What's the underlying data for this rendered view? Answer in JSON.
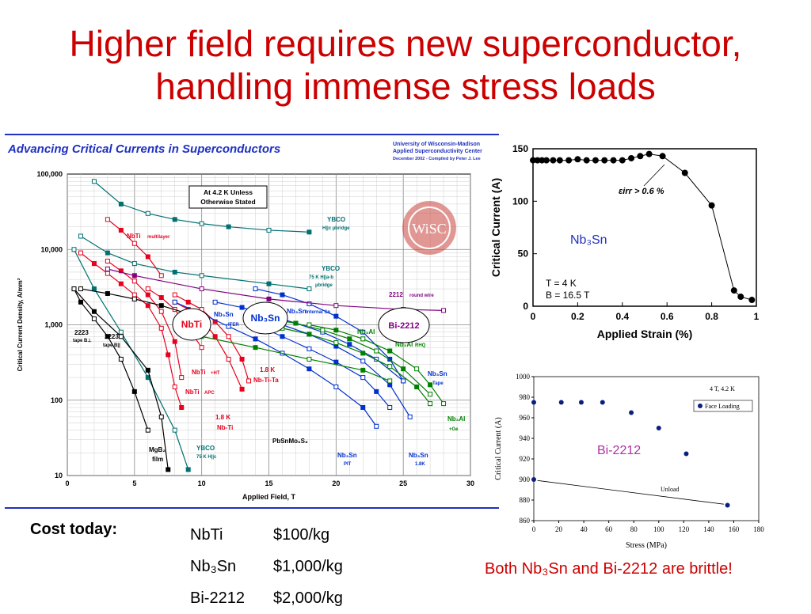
{
  "slide": {
    "title_line1": "Higher field requires new superconductor,",
    "title_line2": "handling immense stress loads"
  },
  "main_chart": {
    "header": "Advancing Critical Currents in Superconductors",
    "credit_lines": [
      "University of Wisconsin-Madison",
      "Applied Superconductivity Center",
      "December 2002 - Compiled by Peter J. Lee"
    ],
    "note_lines": [
      "At 4.2 K Unless",
      "Otherwise Stated"
    ],
    "logo_text": "WiSC",
    "xlabel": "Applied Field, T",
    "ylabel": "Critical Current Density, A/mm²",
    "x_ticks": [
      "0",
      "5",
      "10",
      "15",
      "20",
      "25",
      "30"
    ],
    "y_ticks": [
      "100,000",
      "10,000",
      "1,000",
      "100",
      "10"
    ],
    "labels": {
      "ybco_top": "YBCO",
      "ybco_top_sub": "H||c µbridge",
      "ybco_mid": "YBCO",
      "ybco_mid_sub1": "75 K H||a-b",
      "ybco_mid_sub2": "µbridge",
      "r2212": "2212",
      "r2212_sub": "round wire",
      "nbti_ml": "NbTi",
      "nbti_ml_sub": "multilayer",
      "t2223a": "2223",
      "t2223a_sub": "tape B⊥",
      "t2223b": "2223",
      "t2223b_sub": "tape B||",
      "nbti_ht": "NbTi",
      "nbti_ht_sub": "+HT",
      "nbti_apc": "NbTi",
      "nbti_apc_sub": "APC",
      "nbtita_1": "1.8 K",
      "nbtita_2": "Nb-Ti-Ta",
      "nbti18_1": "1.8 K",
      "nbti18_2": "Nb-Ti",
      "pbsnmo": "PbSnMo₆S₈",
      "mgb2_1": "MgB₂",
      "mgb2_2": "film",
      "ybco_low": "YBCO",
      "ybco_low_sub": "75 K H||c",
      "nb3sn_pit": "Nb₃Sn",
      "nb3sn_pit_sub": "PIT",
      "nb3sn_18": "Nb₃Sn",
      "nb3sn_18_sub": "1.8K",
      "nb3sn_tape": "Nb₃Sn",
      "nb3sn_tape_sub": "Tape",
      "nb3al_ge": "Nb₃Al",
      "nb3al_ge_sub": "+Ge",
      "nb3al_rhq": "Nb₃Al",
      "nb3al_rhq_sub": "RHQ",
      "nb3al_mid": "Nb₃Al",
      "nb3sn_int": "Nb₃Sn",
      "nb3sn_int_sub": "Internal Sn",
      "nb3sn_iter": "Nb₃Sn",
      "nb3sn_iter_sub": "ITER"
    },
    "callouts": {
      "nbti": "NbTi",
      "nb3sn": "Nb₃Sn",
      "bi2212": "Bi-2212"
    },
    "colors": {
      "nbti": "#e8001c",
      "nb3sn": "#0030d0",
      "nb3al": "#008000",
      "bi2212": "#800080",
      "ybco": "#007070",
      "other": "#000000"
    }
  },
  "chart_data": [
    {
      "type": "line",
      "title": "Advancing Critical Currents in Superconductors",
      "xlabel": "Applied Field, T",
      "ylabel": "Critical Current Density, A/mm²",
      "xlim": [
        0,
        30
      ],
      "ylim": [
        10,
        100000
      ],
      "yscale": "log",
      "grid": true,
      "series": [
        {
          "name": "NbTi",
          "color": "#e8001c",
          "x": [
            1,
            2,
            3,
            4,
            5,
            6,
            7,
            7.5,
            8,
            8.5
          ],
          "y": [
            9000,
            6500,
            4800,
            3500,
            2500,
            1800,
            900,
            400,
            150,
            80
          ]
        },
        {
          "name": "NbTi +HT",
          "color": "#e8001c",
          "x": [
            6,
            7,
            8,
            9,
            10
          ],
          "y": [
            3000,
            2300,
            1600,
            900,
            500
          ]
        },
        {
          "name": "NbTi APC",
          "color": "#e8001c",
          "x": [
            3,
            4,
            5,
            6,
            7,
            8,
            8.5
          ],
          "y": [
            7000,
            5200,
            3800,
            2500,
            1500,
            600,
            200
          ]
        },
        {
          "name": "1.8 K Nb-Ti-Ta",
          "color": "#e8001c",
          "x": [
            8,
            9,
            10,
            11,
            12,
            13,
            13.5
          ],
          "y": [
            2500,
            2000,
            1600,
            1100,
            700,
            350,
            180
          ]
        },
        {
          "name": "1.8 K Nb-Ti",
          "color": "#e8001c",
          "x": [
            8,
            9,
            10,
            11,
            12,
            13
          ],
          "y": [
            2000,
            1600,
            1200,
            700,
            350,
            140
          ]
        },
        {
          "name": "NbTi multilayer",
          "color": "#e8001c",
          "x": [
            3,
            4,
            5,
            6,
            7
          ],
          "y": [
            25000,
            18000,
            12000,
            8000,
            4500
          ]
        },
        {
          "name": "Nb3Sn Internal Sn",
          "color": "#0030d0",
          "x": [
            11,
            13,
            15,
            17,
            19,
            21,
            23,
            25
          ],
          "y": [
            2000,
            1700,
            1350,
            1050,
            800,
            550,
            350,
            180
          ]
        },
        {
          "name": "Nb3Sn ITER",
          "color": "#0030d0",
          "x": [
            8,
            10,
            12,
            14,
            16,
            18,
            20,
            22,
            23
          ],
          "y": [
            2000,
            1400,
            950,
            650,
            420,
            260,
            150,
            80,
            45
          ]
        },
        {
          "name": "Nb3Sn PIT",
          "color": "#0030d0",
          "x": [
            14,
            16,
            18,
            20,
            22,
            23,
            24
          ],
          "y": [
            1000,
            700,
            480,
            320,
            200,
            130,
            80
          ]
        },
        {
          "name": "Nb3Sn 1.8K",
          "color": "#0030d0",
          "x": [
            14,
            16,
            18,
            20,
            22,
            24,
            25.5
          ],
          "y": [
            1300,
            1000,
            750,
            520,
            330,
            160,
            60
          ]
        },
        {
          "name": "Nb3Sn Tape",
          "color": "#0030d0",
          "x": [
            14,
            16,
            18,
            20,
            22,
            24,
            25
          ],
          "y": [
            3000,
            2500,
            1900,
            1300,
            800,
            350,
            180
          ]
        },
        {
          "name": "Nb3Al RHQ",
          "color": "#008000",
          "x": [
            15,
            17,
            19,
            21,
            23,
            25,
            27
          ],
          "y": [
            1200,
            1050,
            850,
            650,
            450,
            260,
            120
          ]
        },
        {
          "name": "Nb3Al",
          "color": "#008000",
          "x": [
            16,
            18,
            20,
            22,
            24,
            26,
            27
          ],
          "y": [
            900,
            750,
            580,
            420,
            280,
            150,
            90
          ]
        },
        {
          "name": "Nb3Al +Ge",
          "color": "#008000",
          "x": [
            18,
            20,
            22,
            24,
            26,
            27,
            28
          ],
          "y": [
            1000,
            850,
            650,
            450,
            260,
            160,
            90
          ]
        },
        {
          "name": "2212 round wire",
          "color": "#800080",
          "x": [
            3,
            5,
            10,
            15,
            20,
            25,
            28
          ],
          "y": [
            5500,
            4500,
            3000,
            2200,
            1800,
            1600,
            1550
          ]
        },
        {
          "name": "YBCO H||c µbridge",
          "color": "#007070",
          "x": [
            2,
            4,
            6,
            8,
            10,
            12,
            15,
            18
          ],
          "y": [
            80000,
            40000,
            30000,
            25000,
            22000,
            20000,
            18000,
            17000
          ]
        },
        {
          "name": "YBCO 75 K H||a-b µbridge",
          "color": "#007070",
          "x": [
            1,
            3,
            5,
            8,
            10,
            15,
            18
          ],
          "y": [
            15000,
            9000,
            6500,
            5000,
            4500,
            3500,
            3000
          ]
        },
        {
          "name": "YBCO 75 K H||c",
          "color": "#007070",
          "x": [
            0.5,
            2,
            4,
            6,
            8,
            9
          ],
          "y": [
            10000,
            3000,
            800,
            200,
            40,
            12
          ]
        },
        {
          "name": "2223 tape B⊥",
          "color": "#000000",
          "x": [
            0.5,
            1,
            2,
            3,
            4,
            5,
            6
          ],
          "y": [
            3000,
            2000,
            1200,
            700,
            350,
            130,
            40
          ]
        },
        {
          "name": "2223 tape B||",
          "color": "#000000",
          "x": [
            1,
            3,
            5,
            7,
            9,
            10
          ],
          "y": [
            3000,
            2600,
            2200,
            1800,
            1400,
            1200
          ]
        },
        {
          "name": "MgB2 film",
          "color": "#000000",
          "x": [
            0.5,
            2,
            4,
            6,
            7,
            7.5
          ],
          "y": [
            3000,
            1500,
            700,
            250,
            60,
            12
          ]
        },
        {
          "name": "PbSnMo6S8",
          "color": "#008000",
          "x": [
            10,
            14,
            18,
            22,
            24
          ],
          "y": [
            700,
            500,
            350,
            250,
            180
          ]
        }
      ]
    },
    {
      "type": "line",
      "xlabel": "Applied Strain (%)",
      "ylabel": "Critical Current (A)",
      "xlim": [
        0,
        1
      ],
      "ylim": [
        0,
        150
      ],
      "x_ticks": [
        "0",
        "0.2",
        "0.4",
        "0.6",
        "0.8",
        "1"
      ],
      "y_ticks": [
        "0",
        "50",
        "100",
        "150"
      ],
      "annotation": "εirr > 0.6 %",
      "series_label": "Nb₃Sn",
      "conditions": [
        "T = 4 K",
        "B = 16.5 T"
      ],
      "series": [
        {
          "x": [
            0.0,
            0.02,
            0.04,
            0.06,
            0.09,
            0.12,
            0.16,
            0.2,
            0.24,
            0.28,
            0.32,
            0.36,
            0.4,
            0.44,
            0.48,
            0.52,
            0.58,
            0.68,
            0.8,
            0.9,
            0.93,
            0.98
          ],
          "y": [
            139,
            139,
            139,
            139,
            139,
            139,
            139,
            140,
            139,
            139,
            139,
            139,
            139,
            141,
            143,
            145,
            143,
            127,
            96,
            15,
            9,
            6
          ]
        }
      ]
    },
    {
      "type": "scatter",
      "xlabel": "Stress (MPa)",
      "ylabel": "Critical Current (A)",
      "xlim": [
        0,
        180
      ],
      "ylim": [
        860,
        1000
      ],
      "x_ticks": [
        "0",
        "20",
        "40",
        "60",
        "80",
        "100",
        "120",
        "140",
        "160",
        "180"
      ],
      "y_ticks": [
        "860",
        "880",
        "900",
        "920",
        "940",
        "960",
        "980",
        "1000"
      ],
      "title": "4 T, 4.2 K",
      "legend": "Face Loading",
      "series_label": "Bi-2212",
      "annotation": "Unload",
      "series": [
        {
          "name": "Face Loading",
          "x": [
            0,
            22,
            38,
            55,
            78,
            100,
            122,
            155,
            0
          ],
          "y": [
            975,
            975,
            975,
            975,
            965,
            950,
            925,
            875,
            900
          ]
        }
      ]
    }
  ],
  "cost": {
    "label": "Cost today:",
    "rows": [
      {
        "material": "NbTi",
        "price": "$100/kg"
      },
      {
        "material": "Nb₃Sn",
        "price": "$1,000/kg"
      },
      {
        "material": "Bi-2212",
        "price": "$2,000/kg"
      }
    ]
  },
  "footer_note": "Both Nb₃Sn and Bi-2212 are brittle!"
}
